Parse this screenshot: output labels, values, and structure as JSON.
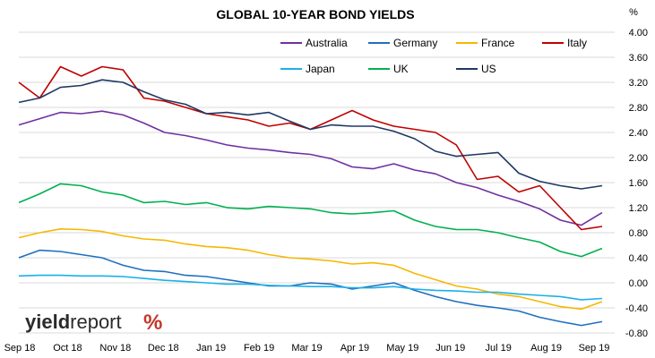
{
  "chart_data": {
    "type": "line",
    "title": "GLOBAL 10-YEAR BOND YIELDS",
    "unit_label": "%",
    "x_tick_labels": [
      "Sep 18",
      "Oct 18",
      "Nov 18",
      "Dec 18",
      "Jan 19",
      "Feb 19",
      "Mar 19",
      "Apr 19",
      "May 19",
      "Jun 19",
      "Jul 19",
      "Aug 19",
      "Sep 19"
    ],
    "y_ticks": [
      "4.00",
      "3.60",
      "3.20",
      "2.80",
      "2.40",
      "2.00",
      "1.60",
      "1.20",
      "0.80",
      "0.40",
      "0.00",
      "-0.40",
      "-0.80"
    ],
    "ylim": [
      -0.8,
      4.0
    ],
    "grid": true,
    "legend_placement": "top-right",
    "series": [
      {
        "name": "Australia",
        "color": "#7030a0",
        "values": [
          2.52,
          2.62,
          2.72,
          2.7,
          2.74,
          2.68,
          2.55,
          2.4,
          2.35,
          2.28,
          2.2,
          2.15,
          2.12,
          2.08,
          2.05,
          1.98,
          1.85,
          1.82,
          1.9,
          1.8,
          1.74,
          1.6,
          1.52,
          1.4,
          1.3,
          1.18,
          1.0,
          0.92,
          1.12
        ]
      },
      {
        "name": "Germany",
        "color": "#1f6fbf",
        "values": [
          0.4,
          0.52,
          0.5,
          0.45,
          0.4,
          0.28,
          0.2,
          0.18,
          0.12,
          0.1,
          0.05,
          0.0,
          -0.05,
          -0.05,
          0.0,
          -0.02,
          -0.1,
          -0.05,
          0.0,
          -0.12,
          -0.22,
          -0.3,
          -0.36,
          -0.4,
          -0.45,
          -0.55,
          -0.62,
          -0.68,
          -0.62
        ]
      },
      {
        "name": "France",
        "color": "#f5b800",
        "values": [
          0.72,
          0.8,
          0.86,
          0.85,
          0.82,
          0.75,
          0.7,
          0.68,
          0.62,
          0.58,
          0.56,
          0.52,
          0.45,
          0.4,
          0.38,
          0.35,
          0.3,
          0.32,
          0.28,
          0.15,
          0.05,
          -0.05,
          -0.1,
          -0.18,
          -0.22,
          -0.3,
          -0.38,
          -0.42,
          -0.3
        ]
      },
      {
        "name": "Italy",
        "color": "#c00000",
        "values": [
          3.2,
          2.95,
          3.45,
          3.3,
          3.45,
          3.4,
          2.95,
          2.9,
          2.8,
          2.7,
          2.65,
          2.6,
          2.5,
          2.55,
          2.45,
          2.6,
          2.75,
          2.6,
          2.5,
          2.45,
          2.4,
          2.2,
          1.65,
          1.7,
          1.45,
          1.55,
          1.2,
          0.85,
          0.9
        ]
      },
      {
        "name": "Japan",
        "color": "#1ab0e8",
        "values": [
          0.11,
          0.12,
          0.12,
          0.11,
          0.11,
          0.1,
          0.07,
          0.04,
          0.02,
          0.0,
          -0.02,
          -0.02,
          -0.04,
          -0.05,
          -0.06,
          -0.06,
          -0.08,
          -0.08,
          -0.06,
          -0.1,
          -0.12,
          -0.13,
          -0.15,
          -0.15,
          -0.18,
          -0.2,
          -0.22,
          -0.27,
          -0.25
        ]
      },
      {
        "name": "UK",
        "color": "#00b050",
        "values": [
          1.28,
          1.42,
          1.58,
          1.55,
          1.45,
          1.4,
          1.28,
          1.3,
          1.25,
          1.28,
          1.2,
          1.18,
          1.22,
          1.2,
          1.18,
          1.12,
          1.1,
          1.12,
          1.15,
          1.0,
          0.9,
          0.85,
          0.85,
          0.8,
          0.72,
          0.65,
          0.5,
          0.42,
          0.55
        ]
      },
      {
        "name": "US",
        "color": "#1f3864",
        "values": [
          2.88,
          2.95,
          3.12,
          3.15,
          3.24,
          3.2,
          3.05,
          2.92,
          2.85,
          2.7,
          2.72,
          2.68,
          2.72,
          2.58,
          2.45,
          2.52,
          2.5,
          2.5,
          2.42,
          2.3,
          2.1,
          2.02,
          2.05,
          2.08,
          1.75,
          1.62,
          1.55,
          1.5,
          1.55
        ]
      }
    ]
  },
  "branding": {
    "logo_part1": "yield",
    "logo_part2": "report",
    "logo_symbol": "%"
  }
}
